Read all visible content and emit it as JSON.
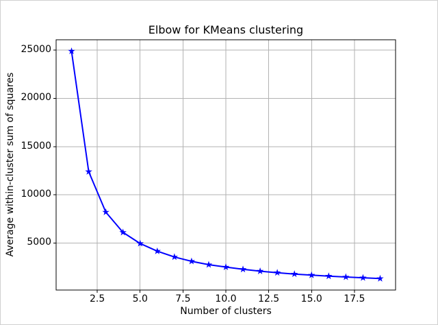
{
  "figure": {
    "background_color": "#ffffff",
    "border_color": "#d0d0d0"
  },
  "chart_data": {
    "type": "line",
    "title": "Elbow for KMeans clustering",
    "xlabel": "Number of clusters",
    "ylabel": "Average within-cluster sum of squares",
    "x": [
      1,
      2,
      3,
      4,
      5,
      6,
      7,
      8,
      9,
      10,
      11,
      12,
      13,
      14,
      15,
      16,
      17,
      18,
      19
    ],
    "y": [
      24900,
      12400,
      8200,
      6100,
      4950,
      4150,
      3550,
      3100,
      2750,
      2500,
      2270,
      2075,
      1920,
      1780,
      1660,
      1560,
      1470,
      1390,
      1310
    ],
    "xlim": [
      0.1,
      19.9
    ],
    "ylim": [
      120,
      26080
    ],
    "xticks": [
      2.5,
      5.0,
      7.5,
      10.0,
      12.5,
      15.0,
      17.5
    ],
    "xtick_labels": [
      "2.5",
      "5.0",
      "7.5",
      "10.0",
      "12.5",
      "15.0",
      "17.5"
    ],
    "yticks": [
      5000,
      10000,
      15000,
      20000,
      25000
    ],
    "ytick_labels": [
      "5000",
      "10000",
      "15000",
      "20000",
      "25000"
    ],
    "grid": true,
    "legend": "none",
    "line_color": "#0000ff",
    "line_width": 2,
    "marker": "star",
    "marker_color": "#0000ff",
    "grid_color": "#b2b2b2",
    "spine_color": "#000000",
    "tick_color": "#000000",
    "text_color": "#000000"
  }
}
